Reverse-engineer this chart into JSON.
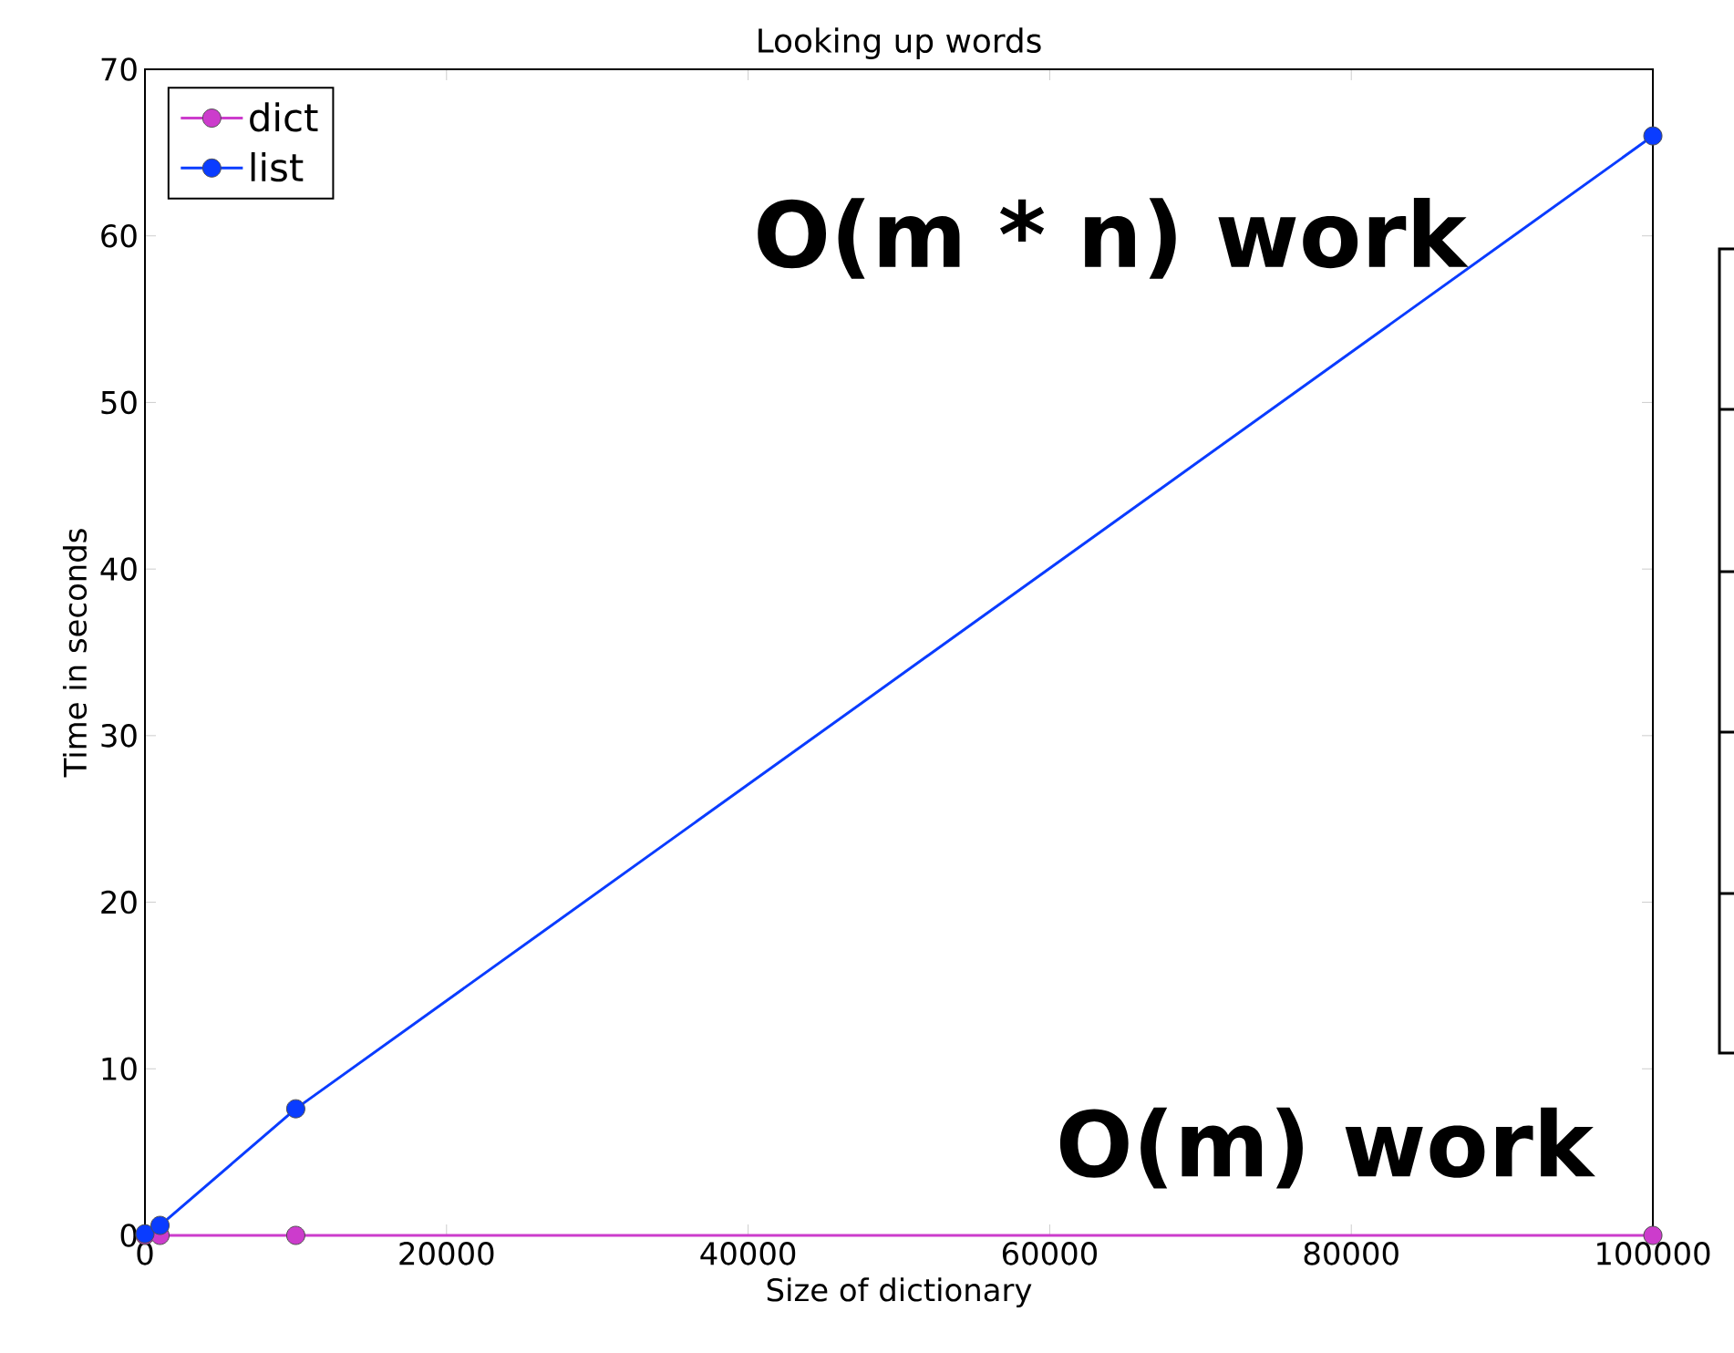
{
  "chart_data": {
    "type": "line",
    "title": "Looking up words",
    "xlabel": "Size of dictionary",
    "ylabel": "Time in seconds",
    "x": [
      0,
      1000,
      10000,
      100000
    ],
    "series": [
      {
        "name": "dict",
        "color": "#cc3ccc",
        "values": [
          0,
          0,
          0,
          0
        ]
      },
      {
        "name": "list",
        "color": "#0a3cff",
        "values": [
          0.1,
          0.6,
          7.6,
          66
        ]
      }
    ],
    "xlim": [
      0,
      100000
    ],
    "ylim": [
      0,
      70
    ],
    "xticks": [
      0,
      20000,
      40000,
      60000,
      80000,
      100000
    ],
    "yticks": [
      0,
      10,
      20,
      30,
      40,
      50,
      60,
      70
    ],
    "marker": "circle",
    "line_style": "solid",
    "legend": "top left",
    "grid": false,
    "annotations": [
      "O(m * n) work",
      "O(m) work"
    ]
  }
}
